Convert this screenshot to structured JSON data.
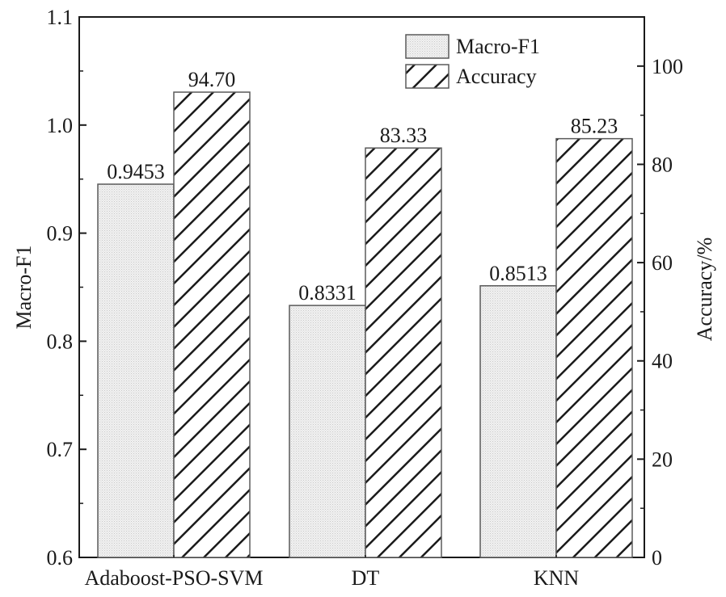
{
  "chart_data": {
    "type": "bar",
    "categories": [
      "Adaboost-PSO-SVM",
      "DT",
      "KNN"
    ],
    "series": [
      {
        "name": "Macro-F1",
        "axis": "left",
        "values": [
          0.9453,
          0.8331,
          0.8513
        ],
        "labels": [
          "0.9453",
          "0.8331",
          "0.8513"
        ],
        "pattern": "dotted-light-gray"
      },
      {
        "name": "Accuracy",
        "axis": "right",
        "values": [
          94.7,
          83.33,
          85.23
        ],
        "labels": [
          "94.70",
          "83.33",
          "85.23"
        ],
        "pattern": "diagonal-hatch"
      }
    ],
    "left_axis": {
      "label": "Macro-F1",
      "ylim": [
        0.6,
        1.1
      ],
      "ticks": [
        0.6,
        0.7,
        0.8,
        0.9,
        1.0,
        1.1
      ],
      "tick_labels": [
        "0.6",
        "0.7",
        "0.8",
        "0.9",
        "1.0",
        "1.1"
      ]
    },
    "right_axis": {
      "label": "Accuracy/%",
      "ylim": [
        0,
        110
      ],
      "ticks": [
        0,
        20,
        40,
        60,
        80,
        100
      ],
      "tick_labels": [
        "0",
        "20",
        "40",
        "60",
        "80",
        "100"
      ]
    },
    "legend": {
      "position": "top-right",
      "entries": [
        "Macro-F1",
        "Accuracy"
      ]
    },
    "grid": false
  }
}
